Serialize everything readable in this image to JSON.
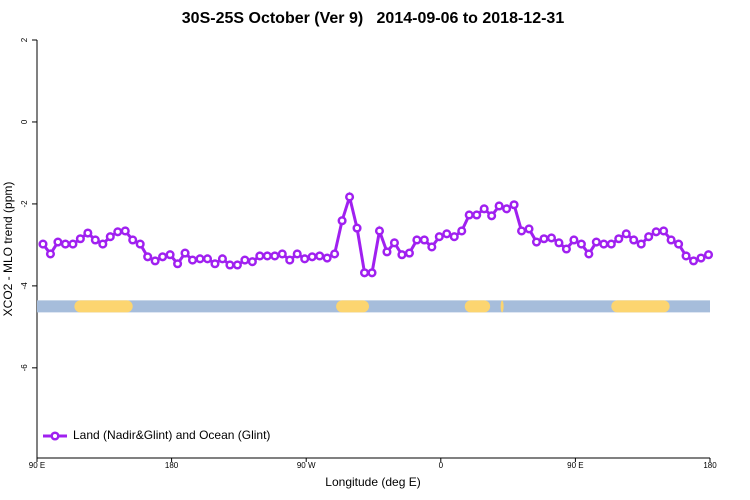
{
  "chart_data": {
    "type": "line",
    "title": "30S-25S October (Ver 9)   2014-09-06 to 2018-12-31",
    "xlabel": "Longitude (deg E)",
    "ylabel": "XCO2 - MLO trend (ppm)",
    "xlim": [
      90,
      540
    ],
    "xticks": [
      {
        "value": 90,
        "label": "90 E"
      },
      180,
      {
        "value": 270,
        "label": "90 W"
      },
      {
        "value": 360,
        "label": "0"
      },
      {
        "value": 450,
        "label": "90 E"
      },
      {
        "value": 540,
        "label": "180"
      }
    ],
    "ylim": [
      -8.2,
      2
    ],
    "yticks": [
      2,
      0,
      -2,
      -4,
      -6
    ],
    "legend": "bottom-left",
    "x": [
      94,
      99,
      104,
      109,
      114,
      119,
      124,
      129,
      134,
      139,
      144,
      149,
      154,
      159,
      164,
      169,
      174,
      179,
      184,
      189,
      194,
      199,
      204,
      209,
      214,
      219,
      224,
      229,
      234,
      239,
      244,
      249,
      254,
      259,
      264,
      269,
      274,
      279,
      284,
      289,
      294,
      299,
      304,
      309,
      314,
      319,
      324,
      329,
      334,
      339,
      344,
      349,
      354,
      359,
      364,
      369,
      374,
      379,
      384,
      389,
      394,
      399,
      404,
      409,
      414,
      419,
      424,
      429,
      434,
      439,
      444,
      449,
      454,
      459,
      464,
      469,
      474,
      479,
      484,
      489,
      494,
      499,
      504,
      509,
      514,
      519,
      524,
      529,
      534,
      539
    ],
    "series": [
      {
        "name": "Land (Nadir&Glint) and Ocean (Glint)",
        "color": "#a020f0",
        "values": [
          -2.98,
          -3.22,
          -2.93,
          -2.98,
          -2.98,
          -2.85,
          -2.71,
          -2.88,
          -2.98,
          -2.8,
          -2.68,
          -2.66,
          -2.88,
          -2.98,
          -3.29,
          -3.39,
          -3.29,
          -3.24,
          -3.46,
          -3.2,
          -3.37,
          -3.34,
          -3.34,
          -3.46,
          -3.34,
          -3.49,
          -3.49,
          -3.37,
          -3.41,
          -3.27,
          -3.27,
          -3.27,
          -3.22,
          -3.37,
          -3.22,
          -3.34,
          -3.29,
          -3.27,
          -3.32,
          -3.22,
          -2.41,
          -1.83,
          -2.59,
          -3.68,
          -3.68,
          -2.66,
          -3.17,
          -2.95,
          -3.24,
          -3.2,
          -2.88,
          -2.88,
          -3.05,
          -2.8,
          -2.73,
          -2.8,
          -2.66,
          -2.27,
          -2.27,
          -2.12,
          -2.29,
          -2.05,
          -2.12,
          -2.02,
          -2.66,
          -2.61,
          -2.93,
          -2.85,
          -2.83,
          -2.95,
          -3.1,
          -2.88,
          -2.98,
          -3.22,
          -2.93,
          -2.98,
          -2.98,
          -2.85,
          -2.73,
          -2.88,
          -2.98,
          -2.8,
          -2.68,
          -2.66,
          -2.88,
          -2.98,
          -3.27,
          -3.39,
          -3.32,
          -3.24
        ]
      }
    ],
    "surface_band": {
      "y": -4.5,
      "ocean_color": "#a6bddb",
      "land_color": "#fcd570",
      "land_segments": [
        [
          115,
          154
        ],
        [
          290,
          312
        ],
        [
          376,
          393
        ],
        [
          400,
          402
        ],
        [
          474,
          513
        ]
      ]
    }
  }
}
